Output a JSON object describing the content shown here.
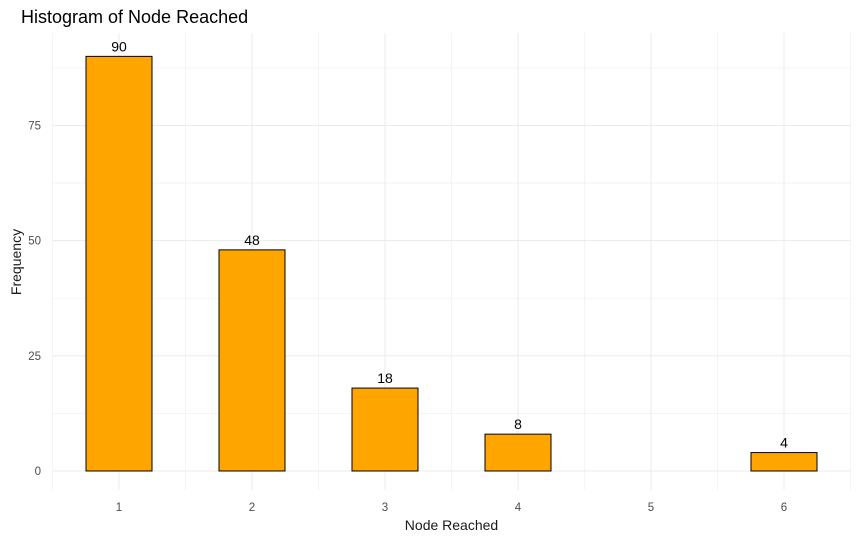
{
  "chart_data": {
    "type": "bar",
    "title": "Histogram of Node Reached",
    "xlabel": "Node Reached",
    "ylabel": "Frequency",
    "categories": [
      1,
      2,
      3,
      4,
      5,
      6
    ],
    "values": [
      90,
      48,
      18,
      8,
      0,
      4
    ],
    "data_labels": [
      "90",
      "48",
      "18",
      "8",
      "",
      "4"
    ],
    "x_ticks": [
      "1",
      "2",
      "3",
      "4",
      "5",
      "6"
    ],
    "y_ticks": [
      0,
      25,
      50,
      75
    ],
    "ylim": [
      0,
      94.5
    ],
    "grid": true,
    "bar_color": "#FFA500",
    "bar_outline": "#000000"
  }
}
